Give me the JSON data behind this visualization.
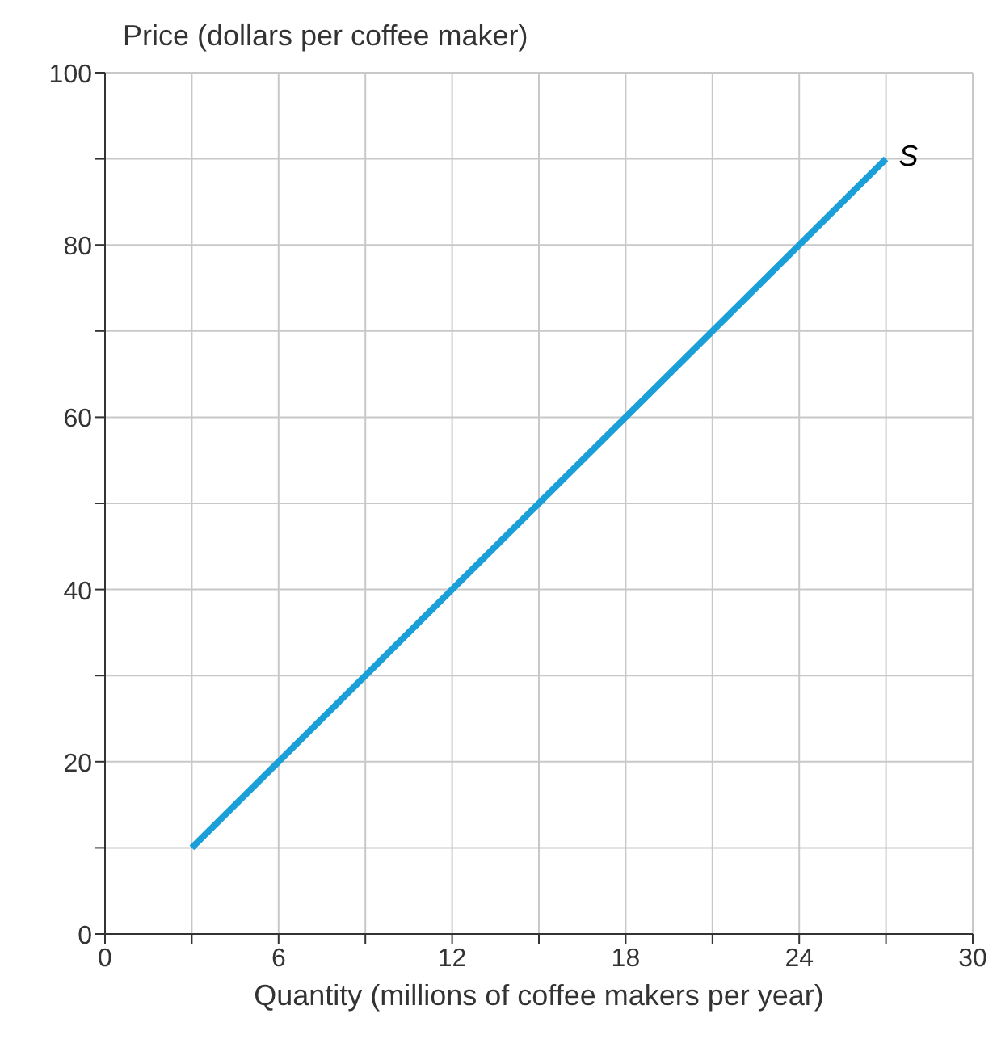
{
  "chart_data": {
    "type": "line",
    "xlabel": "Quantity (millions of coffee makers per year)",
    "ylabel": "Price (dollars per coffee maker)",
    "xlim": [
      0,
      30
    ],
    "ylim": [
      0,
      100
    ],
    "xticks": [
      0,
      {
        "value": 3,
        "label": null
      },
      6,
      {
        "value": 9,
        "label": null
      },
      12,
      {
        "value": 15,
        "label": null
      },
      18,
      {
        "value": 21,
        "label": null
      },
      24,
      {
        "value": 27,
        "label": null
      },
      30
    ],
    "yticks": [
      0,
      {
        "value": 10,
        "label": null
      },
      20,
      {
        "value": 30,
        "label": null
      },
      40,
      {
        "value": 50,
        "label": null
      },
      60,
      {
        "value": 70,
        "label": null
      },
      80,
      {
        "value": 90,
        "label": null
      },
      100
    ],
    "grid": true,
    "marker": "none",
    "line_style": "solid",
    "series": [
      {
        "name": "S",
        "color": "#1a9fd9",
        "x": [
          3,
          27
        ],
        "values": [
          10,
          90
        ]
      }
    ]
  }
}
